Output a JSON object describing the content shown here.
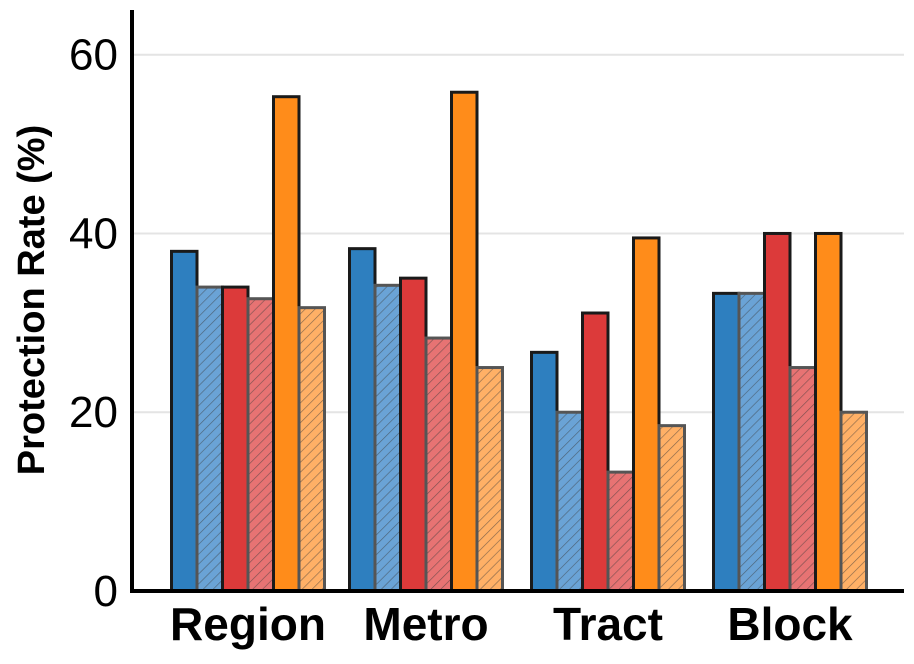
{
  "chart_data": {
    "type": "bar",
    "title": "",
    "xlabel": "",
    "ylabel": "Protection Rate (%)",
    "ylim": [
      0,
      65
    ],
    "yticks": [
      0,
      20,
      40,
      60
    ],
    "grid": true,
    "legend": "none",
    "categories": [
      "Region",
      "Metro",
      "Tract",
      "Block"
    ],
    "series": [
      {
        "name": "blue-solid",
        "color": "#2e7fbf",
        "hatched": false,
        "values": [
          38.0,
          38.3,
          26.7,
          33.3
        ]
      },
      {
        "name": "blue-hatched",
        "color": "#6aa3d6",
        "hatched": true,
        "values": [
          34.0,
          34.2,
          20.0,
          33.3
        ]
      },
      {
        "name": "red-solid",
        "color": "#dc3a3a",
        "hatched": false,
        "values": [
          34.0,
          35.0,
          31.1,
          40.0
        ]
      },
      {
        "name": "red-hatched",
        "color": "#e77373",
        "hatched": true,
        "values": [
          32.7,
          28.3,
          13.3,
          25.0
        ]
      },
      {
        "name": "orange-solid",
        "color": "#ff8c1a",
        "hatched": false,
        "values": [
          55.3,
          55.8,
          39.5,
          40.0
        ]
      },
      {
        "name": "orange-hatched",
        "color": "#ffb066",
        "hatched": true,
        "values": [
          31.7,
          25.0,
          18.5,
          20.0
        ]
      }
    ]
  }
}
